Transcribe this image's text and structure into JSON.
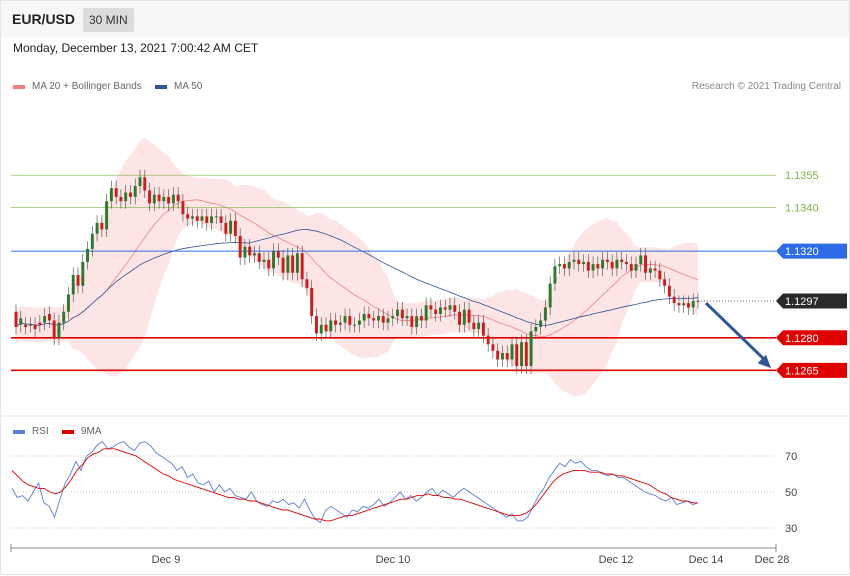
{
  "header": {
    "symbol": "EUR/USD",
    "timeframe": "30 MIN"
  },
  "datetime": "Monday, December 13, 2021 7:00:42 AM CET",
  "credit": "Research © 2021 Trading Central",
  "legend": {
    "ma20": {
      "label": "MA 20 + Bollinger Bands",
      "color": "#f08080"
    },
    "ma50": {
      "label": "MA 50",
      "color": "#2e5597"
    },
    "rsi": {
      "label": "RSI",
      "color": "#5b7fd6"
    },
    "rsi_ma": {
      "label": "9MA",
      "color": "#e00000"
    }
  },
  "colors": {
    "up": "#2b7a2b",
    "down": "#d31919",
    "band": "#fde0e0",
    "support": "#e00000",
    "resistance": "#7ab84a",
    "pivot": "#2e6be6",
    "current": "#2a2a2a"
  },
  "chart_data": [
    {
      "type": "candlestick",
      "title": "EUR/USD",
      "ylim": [
        1.1255,
        1.1368
      ],
      "x_ticks": [
        "Dec 9",
        "Dec 10",
        "Dec 12",
        "Dec 14",
        "Dec 28"
      ],
      "levels": [
        {
          "value": 1.1355,
          "label": "1.1355",
          "kind": "resistance"
        },
        {
          "value": 1.134,
          "label": "1.1340",
          "kind": "resistance"
        },
        {
          "value": 1.132,
          "label": "1.1320",
          "kind": "pivot"
        },
        {
          "value": 1.1297,
          "label": "1.1297",
          "kind": "current"
        },
        {
          "value": 1.128,
          "label": "1.1280",
          "kind": "support"
        },
        {
          "value": 1.1265,
          "label": "1.1265",
          "kind": "support"
        }
      ],
      "forecast_arrow": {
        "from": 1.1296,
        "to": 1.1266
      },
      "candles": [
        [
          1.1292,
          1.1285
        ],
        [
          1.1286,
          1.1289
        ],
        [
          1.1286,
          1.1285
        ],
        [
          1.1286,
          1.1286
        ],
        [
          1.1286,
          1.1284
        ],
        [
          1.1287,
          1.1286
        ],
        [
          1.1287,
          1.129
        ],
        [
          1.1291,
          1.1288
        ],
        [
          1.1288,
          1.128
        ],
        [
          1.128,
          1.1287
        ],
        [
          1.1287,
          1.1292
        ],
        [
          1.1292,
          1.13
        ],
        [
          1.13,
          1.1309
        ],
        [
          1.1309,
          1.1304
        ],
        [
          1.1304,
          1.1315
        ],
        [
          1.1315,
          1.1321
        ],
        [
          1.1321,
          1.1328
        ],
        [
          1.1328,
          1.1333
        ],
        [
          1.1333,
          1.133
        ],
        [
          1.133,
          1.1343
        ],
        [
          1.1343,
          1.1349
        ],
        [
          1.1349,
          1.1345
        ],
        [
          1.1345,
          1.1343
        ],
        [
          1.1343,
          1.1347
        ],
        [
          1.1347,
          1.1345
        ],
        [
          1.1345,
          1.135
        ],
        [
          1.135,
          1.1354
        ],
        [
          1.1354,
          1.1348
        ],
        [
          1.1348,
          1.1342
        ],
        [
          1.1342,
          1.1346
        ],
        [
          1.1346,
          1.1343
        ],
        [
          1.1343,
          1.1345
        ],
        [
          1.1345,
          1.1342
        ],
        [
          1.1342,
          1.1346
        ],
        [
          1.1346,
          1.1343
        ],
        [
          1.1343,
          1.1337
        ],
        [
          1.1337,
          1.1335
        ],
        [
          1.1335,
          1.1336
        ],
        [
          1.1336,
          1.1334
        ],
        [
          1.1334,
          1.1336
        ],
        [
          1.1336,
          1.1333
        ],
        [
          1.1333,
          1.1336
        ],
        [
          1.1336,
          1.1336
        ],
        [
          1.1336,
          1.1333
        ],
        [
          1.1333,
          1.1328
        ],
        [
          1.1328,
          1.1334
        ],
        [
          1.1334,
          1.1327
        ],
        [
          1.1327,
          1.1317
        ],
        [
          1.1317,
          1.1322
        ],
        [
          1.1322,
          1.1318
        ],
        [
          1.1318,
          1.1319
        ],
        [
          1.1319,
          1.1315
        ],
        [
          1.1315,
          1.1316
        ],
        [
          1.1316,
          1.1312
        ],
        [
          1.1312,
          1.132
        ],
        [
          1.132,
          1.1317
        ],
        [
          1.1317,
          1.131
        ],
        [
          1.131,
          1.1318
        ],
        [
          1.1318,
          1.131
        ],
        [
          1.131,
          1.1319
        ],
        [
          1.1319,
          1.1307
        ],
        [
          1.1307,
          1.1303
        ],
        [
          1.1303,
          1.129
        ],
        [
          1.129,
          1.1282
        ],
        [
          1.1282,
          1.1286
        ],
        [
          1.1286,
          1.1283
        ],
        [
          1.1283,
          1.1288
        ],
        [
          1.1288,
          1.1286
        ],
        [
          1.1286,
          1.1287
        ],
        [
          1.1287,
          1.129
        ],
        [
          1.129,
          1.1286
        ],
        [
          1.1286,
          1.1286
        ],
        [
          1.1286,
          1.1288
        ],
        [
          1.1288,
          1.1291
        ],
        [
          1.1291,
          1.1289
        ],
        [
          1.1289,
          1.1288
        ],
        [
          1.1288,
          1.129
        ],
        [
          1.129,
          1.1287
        ],
        [
          1.1287,
          1.1289
        ],
        [
          1.1289,
          1.129
        ],
        [
          1.129,
          1.1293
        ],
        [
          1.1293,
          1.1289
        ],
        [
          1.1289,
          1.129
        ],
        [
          1.129,
          1.1285
        ],
        [
          1.1285,
          1.129
        ],
        [
          1.129,
          1.1288
        ],
        [
          1.1288,
          1.1295
        ],
        [
          1.1295,
          1.1293
        ],
        [
          1.1293,
          1.1291
        ],
        [
          1.1291,
          1.1294
        ],
        [
          1.1294,
          1.1293
        ],
        [
          1.1293,
          1.1295
        ],
        [
          1.1295,
          1.1292
        ],
        [
          1.1292,
          1.1286
        ],
        [
          1.1286,
          1.1293
        ],
        [
          1.1293,
          1.1287
        ],
        [
          1.1287,
          1.1284
        ],
        [
          1.1284,
          1.1287
        ],
        [
          1.1287,
          1.1281
        ],
        [
          1.1281,
          1.1277
        ],
        [
          1.1277,
          1.1274
        ],
        [
          1.1274,
          1.127
        ],
        [
          1.127,
          1.1273
        ],
        [
          1.1273,
          1.127
        ],
        [
          1.127,
          1.1277
        ],
        [
          1.1277,
          1.1267
        ],
        [
          1.1267,
          1.1278
        ],
        [
          1.1278,
          1.1267
        ],
        [
          1.1267,
          1.1283
        ],
        [
          1.1283,
          1.1285
        ],
        [
          1.1285,
          1.1288
        ],
        [
          1.1288,
          1.1294
        ],
        [
          1.1294,
          1.1305
        ],
        [
          1.1305,
          1.1313
        ],
        [
          1.1313,
          1.1314
        ],
        [
          1.1314,
          1.1312
        ],
        [
          1.1312,
          1.1315
        ],
        [
          1.1315,
          1.1316
        ],
        [
          1.1316,
          1.1314
        ],
        [
          1.1314,
          1.1315
        ],
        [
          1.1315,
          1.1311
        ],
        [
          1.1311,
          1.1314
        ],
        [
          1.1314,
          1.1312
        ],
        [
          1.1312,
          1.1316
        ],
        [
          1.1316,
          1.1315
        ],
        [
          1.1315,
          1.1312
        ],
        [
          1.1312,
          1.1316
        ],
        [
          1.1316,
          1.1315
        ],
        [
          1.1315,
          1.1314
        ],
        [
          1.1314,
          1.1311
        ],
        [
          1.1311,
          1.1314
        ],
        [
          1.1314,
          1.1318
        ],
        [
          1.1318,
          1.131
        ],
        [
          1.131,
          1.1312
        ],
        [
          1.1312,
          1.1311
        ],
        [
          1.1311,
          1.1307
        ],
        [
          1.1307,
          1.1304
        ],
        [
          1.1304,
          1.1299
        ],
        [
          1.1299,
          1.1296
        ],
        [
          1.1296,
          1.1295
        ],
        [
          1.1295,
          1.1296
        ],
        [
          1.1296,
          1.1294
        ],
        [
          1.1294,
          1.1297
        ],
        [
          1.1297,
          1.1297
        ]
      ]
    },
    {
      "type": "line",
      "title": "RSI",
      "ylim": [
        20,
        80
      ],
      "y_ticks": [
        30,
        50,
        70
      ],
      "series": [
        {
          "name": "RSI",
          "values": [
            52,
            47,
            48,
            45,
            50,
            55,
            44,
            42,
            36,
            46,
            55,
            60,
            67,
            62,
            70,
            72,
            76,
            78,
            74,
            75,
            77,
            78,
            75,
            73,
            77,
            78,
            76,
            72,
            70,
            68,
            66,
            62,
            64,
            58,
            60,
            55,
            54,
            56,
            50,
            54,
            50,
            52,
            48,
            47,
            46,
            50,
            45,
            43,
            42,
            45,
            44,
            46,
            43,
            44,
            41,
            46,
            40,
            35,
            33,
            40,
            42,
            40,
            38,
            36,
            40,
            39,
            42,
            41,
            43,
            46,
            42,
            44,
            47,
            50,
            46,
            48,
            45,
            47,
            50,
            52,
            48,
            51,
            49,
            47,
            50,
            52,
            50,
            48,
            46,
            44,
            42,
            40,
            38,
            36,
            38,
            34,
            34,
            36,
            42,
            48,
            52,
            58,
            62,
            66,
            64,
            68,
            66,
            67,
            64,
            62,
            62,
            60,
            59,
            60,
            58,
            58,
            56,
            54,
            52,
            50,
            49,
            48,
            46,
            45,
            47,
            43,
            44,
            45,
            43,
            44
          ]
        },
        {
          "name": "9MA",
          "values": [
            62,
            59,
            56,
            54,
            53,
            52,
            52,
            50,
            49,
            50,
            53,
            57,
            62,
            65,
            69,
            71,
            72,
            74,
            74,
            74,
            73,
            72,
            71,
            70,
            68,
            66,
            64,
            62,
            60,
            59,
            57,
            56,
            55,
            54,
            53,
            52,
            51,
            50,
            49,
            48,
            47,
            47,
            46,
            46,
            45,
            45,
            44,
            43,
            42,
            41,
            40,
            40,
            39,
            38,
            37,
            36,
            35,
            35,
            34,
            34,
            35,
            36,
            37,
            37,
            38,
            39,
            40,
            41,
            42,
            43,
            44,
            45,
            46,
            46,
            47,
            48,
            48,
            49,
            48,
            48,
            47,
            47,
            46,
            46,
            45,
            44,
            43,
            42,
            41,
            40,
            39,
            38,
            37,
            37,
            37,
            38,
            40,
            43,
            47,
            51,
            55,
            58,
            60,
            61,
            62,
            62,
            62,
            61,
            61,
            61,
            60,
            60,
            59,
            59,
            58,
            57,
            56,
            55,
            54,
            52,
            50,
            49,
            47,
            46,
            45,
            45,
            44,
            44
          ]
        }
      ]
    }
  ]
}
